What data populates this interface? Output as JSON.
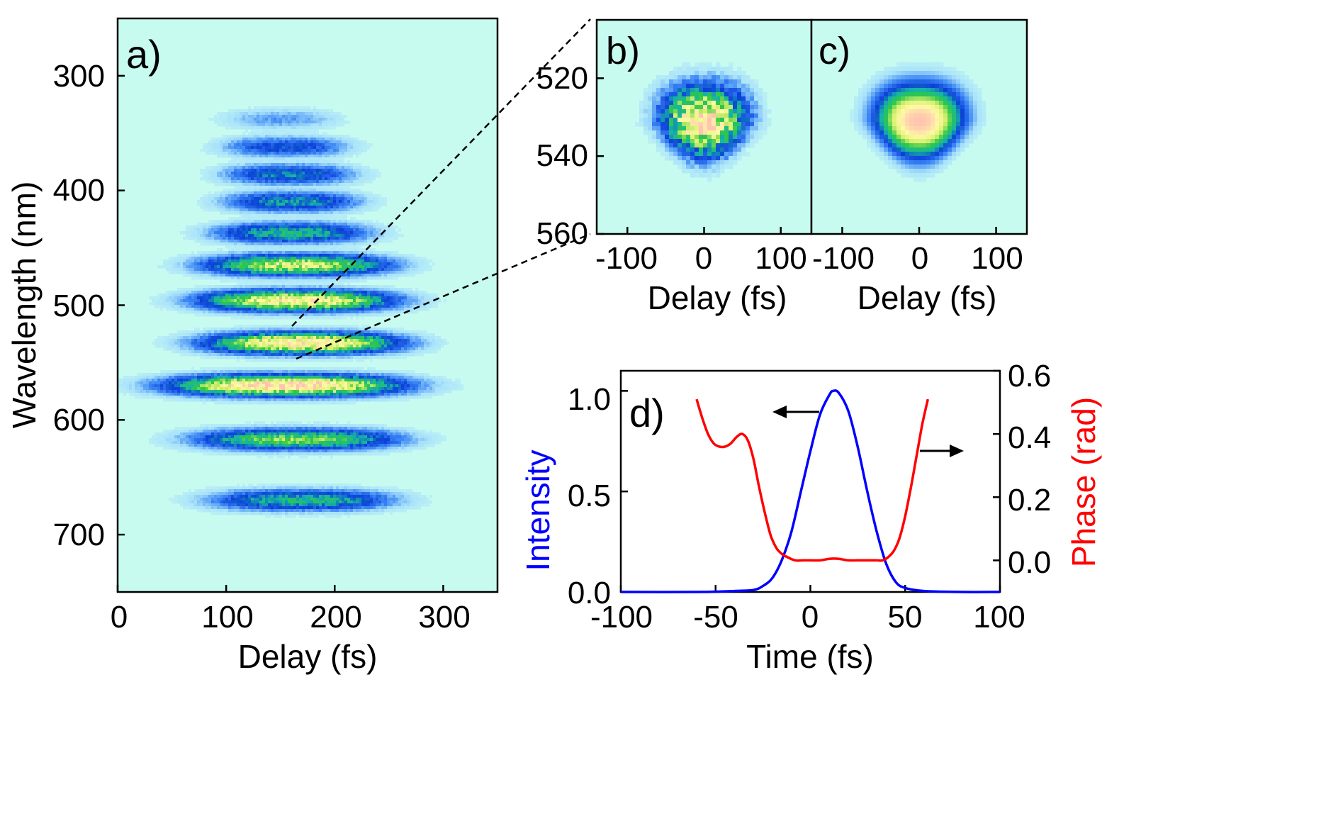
{
  "colors": {
    "background": "#c8fbf0",
    "intensity": "#0000ff",
    "phase": "#ff0000",
    "axis": "#000000",
    "colormap": [
      "#c8fbf0",
      "#a9e2fa",
      "#3b86f5",
      "#0a3fd8",
      "#17b4a5",
      "#2ec846",
      "#d8f06e",
      "#fffaa5",
      "#ffc4b0"
    ]
  },
  "chart_data": [
    {
      "type": "heatmap",
      "panel_label": "a)",
      "xlabel": "Delay (fs)",
      "ylabel": "Wavelength (nm)",
      "xlim": [
        0,
        350
      ],
      "ylim": [
        250,
        750
      ],
      "xticks": [
        "0",
        "100",
        "200",
        "300"
      ],
      "yticks": [
        "300",
        "400",
        "500",
        "600",
        "700"
      ],
      "xtick_values": [
        0,
        100,
        200,
        300
      ],
      "ytick_values": [
        300,
        400,
        500,
        600,
        700
      ],
      "bands": [
        {
          "wavelength": 338,
          "center_delay": 150,
          "half_width": 65,
          "peak": 0.22
        },
        {
          "wavelength": 362,
          "center_delay": 155,
          "half_width": 70,
          "peak": 0.38
        },
        {
          "wavelength": 386,
          "center_delay": 158,
          "half_width": 72,
          "peak": 0.45
        },
        {
          "wavelength": 410,
          "center_delay": 160,
          "half_width": 75,
          "peak": 0.48
        },
        {
          "wavelength": 437,
          "center_delay": 160,
          "half_width": 85,
          "peak": 0.55
        },
        {
          "wavelength": 465,
          "center_delay": 165,
          "half_width": 100,
          "peak": 0.78
        },
        {
          "wavelength": 496,
          "center_delay": 165,
          "half_width": 105,
          "peak": 0.88
        },
        {
          "wavelength": 533,
          "center_delay": 170,
          "half_width": 105,
          "peak": 0.92
        },
        {
          "wavelength": 570,
          "center_delay": 155,
          "half_width": 125,
          "peak": 0.97
        },
        {
          "wavelength": 617,
          "center_delay": 165,
          "half_width": 110,
          "peak": 0.68
        },
        {
          "wavelength": 670,
          "center_delay": 170,
          "half_width": 100,
          "peak": 0.55
        }
      ]
    },
    {
      "type": "heatmap",
      "panel_label": "b)",
      "xlabel": "Delay (fs)",
      "ylabel": "",
      "xlim": [
        -140,
        140
      ],
      "ylim": [
        505,
        560
      ],
      "xticks": [
        "-100",
        "0",
        "100"
      ],
      "yticks": [
        "520",
        "540",
        "560"
      ],
      "xtick_values": [
        -100,
        0,
        100
      ],
      "ytick_values": [
        520,
        540,
        560
      ],
      "spot": {
        "center_delay": 0,
        "center_wavelength": 531,
        "sigma_delay": 55,
        "sigma_wavelength": 9,
        "peak": 0.9,
        "texture": "noisy"
      }
    },
    {
      "type": "heatmap",
      "panel_label": "c)",
      "xlabel": "Delay (fs)",
      "ylabel": "",
      "xlim": [
        -140,
        140
      ],
      "ylim": [
        505,
        560
      ],
      "xticks": [
        "-100",
        "0",
        "100"
      ],
      "yticks": [],
      "xtick_values": [
        -100,
        0,
        100
      ],
      "ytick_values": [],
      "spot": {
        "center_delay": 0,
        "center_wavelength": 531,
        "sigma_delay": 55,
        "sigma_wavelength": 9,
        "peak": 1.0,
        "texture": "smooth"
      }
    },
    {
      "type": "line",
      "panel_label": "d)",
      "xlabel": "Time (fs)",
      "ylabel": "Intensity",
      "y2label": "Phase (rad)",
      "xlim": [
        -100,
        100
      ],
      "ylim": [
        0,
        1.1
      ],
      "y2lim": [
        -0.1,
        0.6
      ],
      "xticks": [
        "-100",
        "-50",
        "0",
        "50",
        "100"
      ],
      "yticks": [
        "0.0",
        "0.5",
        "1.0"
      ],
      "y2ticks": [
        "0.0",
        "0.2",
        "0.4",
        "0.6"
      ],
      "xtick_values": [
        -100,
        -50,
        0,
        50,
        100
      ],
      "ytick_values": [
        0,
        0.5,
        1.0
      ],
      "y2tick_values": [
        0,
        0.2,
        0.4,
        0.6
      ],
      "series": [
        {
          "name": "Intensity",
          "axis": "left",
          "color": "#0000ff",
          "x": [
            -100,
            -60,
            -40,
            -30,
            -25,
            -20,
            -15,
            -10,
            -5,
            0,
            5,
            10,
            12,
            15,
            20,
            25,
            30,
            35,
            40,
            45,
            50,
            60,
            80,
            100
          ],
          "y": [
            0,
            0,
            0.005,
            0.01,
            0.03,
            0.07,
            0.16,
            0.3,
            0.5,
            0.7,
            0.88,
            0.98,
            1.0,
            0.99,
            0.9,
            0.72,
            0.5,
            0.3,
            0.14,
            0.05,
            0.02,
            0.005,
            0,
            0
          ]
        },
        {
          "name": "Phase",
          "axis": "right",
          "color": "#ff0000",
          "x": [
            -60,
            -57,
            -54,
            -51,
            -48,
            -45,
            -42,
            -39,
            -36,
            -33,
            -30,
            -27,
            -24,
            -21,
            -18,
            -15,
            -12,
            -8,
            -4,
            0,
            5,
            10,
            15,
            20,
            25,
            30,
            35,
            38,
            41,
            44,
            47,
            50,
            53,
            56,
            59,
            62
          ],
          "y": [
            0.51,
            0.45,
            0.4,
            0.37,
            0.36,
            0.36,
            0.37,
            0.39,
            0.4,
            0.38,
            0.32,
            0.23,
            0.15,
            0.08,
            0.04,
            0.02,
            0.01,
            0.0,
            0.0,
            0.0,
            0.0,
            0.005,
            0.005,
            0.0,
            0.0,
            0.0,
            0.0,
            0.0,
            0.01,
            0.03,
            0.07,
            0.14,
            0.23,
            0.33,
            0.43,
            0.51
          ]
        }
      ]
    }
  ]
}
